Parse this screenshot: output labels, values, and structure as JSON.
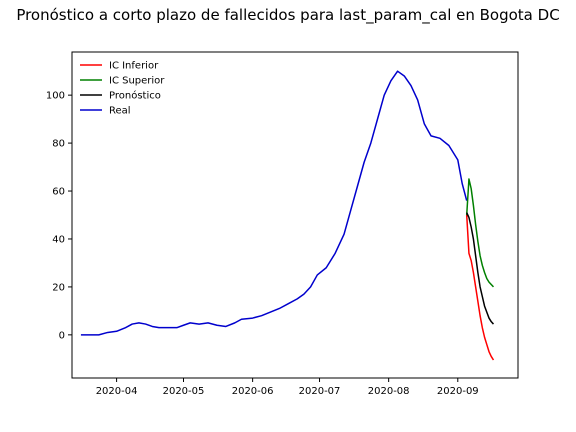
{
  "chart_data": {
    "type": "line",
    "title": "Pronóstico a corto plazo de fallecidos para last_param_cal en Bogota DC",
    "xlabel": "",
    "ylabel": "",
    "x_axis": {
      "type": "date",
      "range": [
        "2020-03-12",
        "2020-09-28"
      ],
      "tick_labels": [
        "2020-04",
        "2020-05",
        "2020-06",
        "2020-07",
        "2020-08",
        "2020-09"
      ],
      "tick_values": [
        "2020-04-01",
        "2020-05-01",
        "2020-06-01",
        "2020-07-01",
        "2020-08-01",
        "2020-09-01"
      ]
    },
    "y_axis": {
      "range": [
        -18,
        118
      ],
      "tick_values": [
        0,
        20,
        40,
        60,
        80,
        100
      ],
      "tick_labels": [
        "0",
        "20",
        "40",
        "60",
        "80",
        "100"
      ]
    },
    "grid": false,
    "legend": {
      "position": "top-left",
      "entries": [
        "IC Inferior",
        "IC Superior",
        "Pronóstico",
        "Real"
      ]
    },
    "series": [
      {
        "name": "IC Inferior",
        "color": "#ff0000",
        "points": [
          [
            "2020-09-05",
            50
          ],
          [
            "2020-09-06",
            34
          ],
          [
            "2020-09-07",
            31
          ],
          [
            "2020-09-08",
            26
          ],
          [
            "2020-09-09",
            20
          ],
          [
            "2020-09-10",
            14
          ],
          [
            "2020-09-11",
            8
          ],
          [
            "2020-09-12",
            3
          ],
          [
            "2020-09-13",
            -1
          ],
          [
            "2020-09-14",
            -4
          ],
          [
            "2020-09-15",
            -7
          ],
          [
            "2020-09-16",
            -9
          ],
          [
            "2020-09-17",
            -10.5
          ]
        ]
      },
      {
        "name": "IC Superior",
        "color": "#008000",
        "points": [
          [
            "2020-09-05",
            50
          ],
          [
            "2020-09-06",
            65
          ],
          [
            "2020-09-07",
            61
          ],
          [
            "2020-09-08",
            54
          ],
          [
            "2020-09-09",
            46
          ],
          [
            "2020-09-10",
            39
          ],
          [
            "2020-09-11",
            33
          ],
          [
            "2020-09-12",
            29
          ],
          [
            "2020-09-13",
            26
          ],
          [
            "2020-09-14",
            23.5
          ],
          [
            "2020-09-15",
            22
          ],
          [
            "2020-09-16",
            21
          ],
          [
            "2020-09-17",
            20
          ]
        ]
      },
      {
        "name": "Pronóstico",
        "color": "#000000",
        "points": [
          [
            "2020-09-05",
            51
          ],
          [
            "2020-09-06",
            49
          ],
          [
            "2020-09-07",
            45
          ],
          [
            "2020-09-08",
            40
          ],
          [
            "2020-09-09",
            33
          ],
          [
            "2020-09-10",
            26
          ],
          [
            "2020-09-11",
            20
          ],
          [
            "2020-09-12",
            16
          ],
          [
            "2020-09-13",
            12
          ],
          [
            "2020-09-14",
            9.5
          ],
          [
            "2020-09-15",
            7
          ],
          [
            "2020-09-16",
            5.5
          ],
          [
            "2020-09-17",
            4.5
          ]
        ]
      },
      {
        "name": "Real",
        "color": "#0000cd",
        "points": [
          [
            "2020-03-16",
            0
          ],
          [
            "2020-03-20",
            0
          ],
          [
            "2020-03-24",
            0
          ],
          [
            "2020-03-28",
            1
          ],
          [
            "2020-04-01",
            1.5
          ],
          [
            "2020-04-05",
            3
          ],
          [
            "2020-04-08",
            4.5
          ],
          [
            "2020-04-11",
            5
          ],
          [
            "2020-04-14",
            4.5
          ],
          [
            "2020-04-17",
            3.5
          ],
          [
            "2020-04-20",
            3
          ],
          [
            "2020-04-24",
            3
          ],
          [
            "2020-04-28",
            3
          ],
          [
            "2020-05-01",
            4
          ],
          [
            "2020-05-04",
            5
          ],
          [
            "2020-05-08",
            4.5
          ],
          [
            "2020-05-12",
            5
          ],
          [
            "2020-05-16",
            4
          ],
          [
            "2020-05-20",
            3.5
          ],
          [
            "2020-05-24",
            5
          ],
          [
            "2020-05-27",
            6.5
          ],
          [
            "2020-06-01",
            7
          ],
          [
            "2020-06-05",
            8
          ],
          [
            "2020-06-09",
            9.5
          ],
          [
            "2020-06-13",
            11
          ],
          [
            "2020-06-17",
            13
          ],
          [
            "2020-06-21",
            15
          ],
          [
            "2020-06-24",
            17
          ],
          [
            "2020-06-27",
            20
          ],
          [
            "2020-06-30",
            25
          ],
          [
            "2020-07-04",
            28
          ],
          [
            "2020-07-08",
            34
          ],
          [
            "2020-07-12",
            42
          ],
          [
            "2020-07-15",
            52
          ],
          [
            "2020-07-18",
            62
          ],
          [
            "2020-07-21",
            72
          ],
          [
            "2020-07-24",
            80
          ],
          [
            "2020-07-27",
            90
          ],
          [
            "2020-07-30",
            100
          ],
          [
            "2020-08-02",
            106
          ],
          [
            "2020-08-05",
            110
          ],
          [
            "2020-08-08",
            108
          ],
          [
            "2020-08-11",
            104
          ],
          [
            "2020-08-14",
            98
          ],
          [
            "2020-08-17",
            88
          ],
          [
            "2020-08-20",
            83
          ],
          [
            "2020-08-24",
            82
          ],
          [
            "2020-08-28",
            79
          ],
          [
            "2020-09-01",
            73
          ],
          [
            "2020-09-03",
            63
          ],
          [
            "2020-09-05",
            56
          ]
        ]
      }
    ]
  }
}
